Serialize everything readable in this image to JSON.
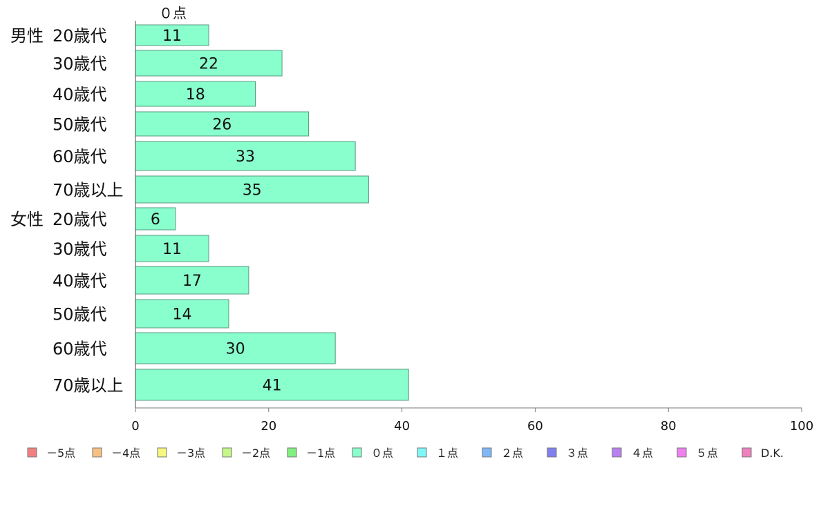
{
  "chart_data": {
    "type": "bar",
    "orientation": "horizontal",
    "stacked": true,
    "column_label": "０点",
    "groups": [
      {
        "name": "男性",
        "start": 0
      },
      {
        "name": "女性",
        "start": 6
      }
    ],
    "categories": [
      "20歳代",
      "30歳代",
      "40歳代",
      "50歳代",
      "60歳代",
      "70歳以上",
      "20歳代",
      "30歳代",
      "40歳代",
      "50歳代",
      "60歳代",
      "70歳以上"
    ],
    "series": [
      {
        "name": "０点",
        "values": [
          11,
          22,
          18,
          26,
          33,
          35,
          6,
          11,
          17,
          14,
          30,
          41
        ]
      }
    ],
    "xlim": [
      0,
      100
    ],
    "xticks": [
      "0",
      "20",
      "40",
      "60",
      "80",
      "100"
    ],
    "legend_position": "bottom",
    "legend": [
      {
        "label": "－5点",
        "color": "#f28080"
      },
      {
        "label": "－4点",
        "color": "#f7c080"
      },
      {
        "label": "－3点",
        "color": "#f7f780"
      },
      {
        "label": "－2点",
        "color": "#c6f78a"
      },
      {
        "label": "－1点",
        "color": "#80f080"
      },
      {
        "label": "０点",
        "color": "#88ffcc"
      },
      {
        "label": "１点",
        "color": "#80f7f7"
      },
      {
        "label": "２点",
        "color": "#80b8f7"
      },
      {
        "label": "３点",
        "color": "#8080f0"
      },
      {
        "label": "４点",
        "color": "#b880f0"
      },
      {
        "label": "５点",
        "color": "#f080f0"
      },
      {
        "label": "D.K.",
        "color": "#f080c0"
      }
    ]
  }
}
